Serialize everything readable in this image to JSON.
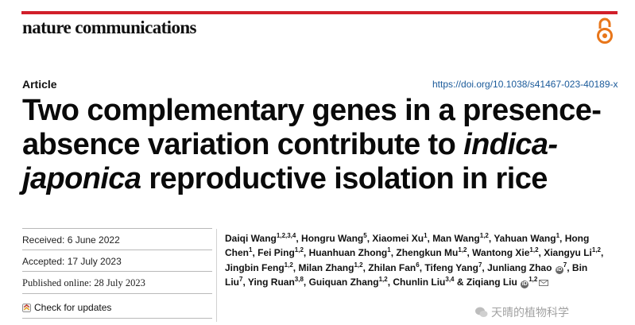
{
  "journal": {
    "name": "nature communications"
  },
  "article": {
    "type": "Article",
    "doi": "https://doi.org/10.1038/s41467-023-40189-x",
    "title_parts": {
      "line1": "Two complementary genes in a presence-",
      "line2_a": "absence variation contribute to ",
      "line2_b": "indica-",
      "line3_a": "japonica",
      "line3_b": " reproductive isolation in rice"
    }
  },
  "history": {
    "received": "Received: 6 June 2022",
    "accepted": "Accepted: 17 July 2023",
    "published": "Published online: 28 July 2023",
    "check_updates": "Check for updates"
  },
  "authors": [
    {
      "name": "Daiqi Wang",
      "aff": "1,2,3,4"
    },
    {
      "name": "Hongru Wang",
      "aff": "5"
    },
    {
      "name": "Xiaomei Xu",
      "aff": "1"
    },
    {
      "name": "Man Wang",
      "aff": "1,2"
    },
    {
      "name": "Yahuan Wang",
      "aff": "1"
    },
    {
      "name": "Hong Chen",
      "aff": "1"
    },
    {
      "name": "Fei Ping",
      "aff": "1,2"
    },
    {
      "name": "Huanhuan Zhong",
      "aff": "1"
    },
    {
      "name": "Zhengkun Mu",
      "aff": "1,2"
    },
    {
      "name": "Wantong Xie",
      "aff": "1,2"
    },
    {
      "name": "Xiangyu Li",
      "aff": "1,2"
    },
    {
      "name": "Jingbin Feng",
      "aff": "1,2"
    },
    {
      "name": "Milan Zhang",
      "aff": "1,2"
    },
    {
      "name": "Zhilan Fan",
      "aff": "6"
    },
    {
      "name": "Tifeng Yang",
      "aff": "7"
    },
    {
      "name": "Junliang Zhao",
      "aff": "7"
    },
    {
      "name": "Bin Liu",
      "aff": "7"
    },
    {
      "name": "Ying Ruan",
      "aff": "3,8"
    },
    {
      "name": "Guiquan Zhang",
      "aff": "1,2"
    },
    {
      "name": "Chunlin Liu",
      "aff": "3,4"
    },
    {
      "name": "Ziqiang Liu",
      "aff": "1,2"
    }
  ],
  "authors_conjunction": "&",
  "orcid_glyph": "iD",
  "watermark": {
    "text": "天晴的植物科学"
  },
  "colors": {
    "brand_red": "#d11f2a",
    "oa_orange": "#e8761a",
    "doi_blue": "#1a5a9a"
  },
  "icons": [
    "open-access-icon",
    "check-updates-icon",
    "orcid-icon",
    "mail-icon",
    "wechat-icon"
  ]
}
